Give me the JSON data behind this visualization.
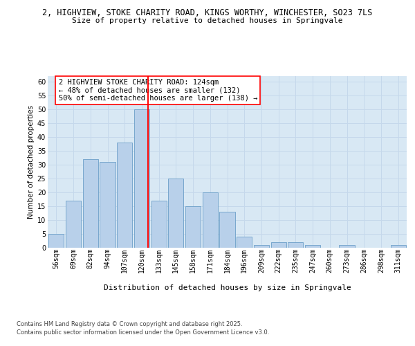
{
  "title_line1": "2, HIGHVIEW, STOKE CHARITY ROAD, KINGS WORTHY, WINCHESTER, SO23 7LS",
  "title_line2": "Size of property relative to detached houses in Springvale",
  "xlabel": "Distribution of detached houses by size in Springvale",
  "ylabel": "Number of detached properties",
  "categories": [
    "56sqm",
    "69sqm",
    "82sqm",
    "94sqm",
    "107sqm",
    "120sqm",
    "133sqm",
    "145sqm",
    "158sqm",
    "171sqm",
    "184sqm",
    "196sqm",
    "209sqm",
    "222sqm",
    "235sqm",
    "247sqm",
    "260sqm",
    "273sqm",
    "286sqm",
    "298sqm",
    "311sqm"
  ],
  "values": [
    5,
    17,
    32,
    31,
    38,
    50,
    17,
    25,
    15,
    20,
    13,
    4,
    1,
    2,
    2,
    1,
    0,
    1,
    0,
    0,
    1
  ],
  "bar_color": "#b8d0ea",
  "bar_edge_color": "#6b9fc8",
  "grid_color": "#c5d8eb",
  "background_color": "#d8e8f4",
  "red_line_x": 5.35,
  "annotation_text": "2 HIGHVIEW STOKE CHARITY ROAD: 124sqm\n← 48% of detached houses are smaller (132)\n50% of semi-detached houses are larger (138) →",
  "footnote1": "Contains HM Land Registry data © Crown copyright and database right 2025.",
  "footnote2": "Contains public sector information licensed under the Open Government Licence v3.0.",
  "ylim": [
    0,
    62
  ],
  "yticks": [
    0,
    5,
    10,
    15,
    20,
    25,
    30,
    35,
    40,
    45,
    50,
    55,
    60
  ],
  "title1_fontsize": 8.5,
  "title2_fontsize": 8.0,
  "ylabel_fontsize": 7.5,
  "xlabel_fontsize": 8.0,
  "tick_fontsize": 7.0,
  "annot_fontsize": 7.5,
  "footnote_fontsize": 6.0
}
